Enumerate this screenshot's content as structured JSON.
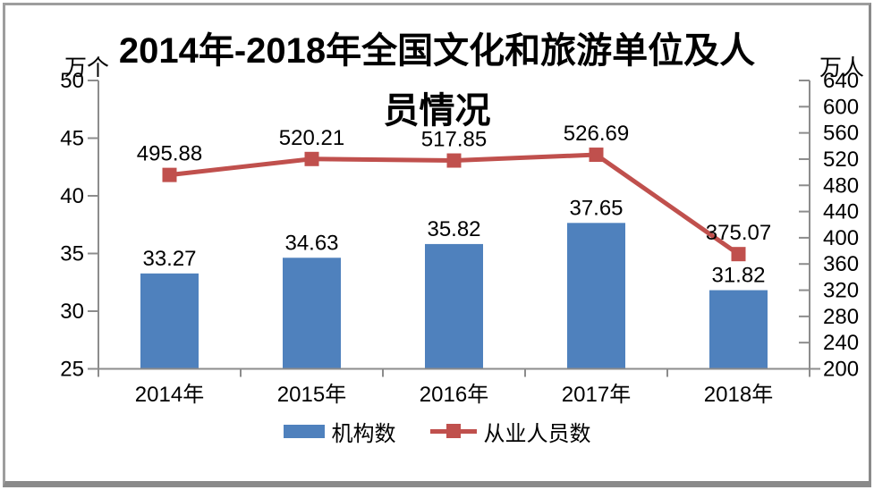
{
  "title": {
    "full": "2014年-2018年全国文化和旅游单位及人员情况",
    "line1": "2014年-2018年全国文化和旅游单位及人",
    "line2": "员情况"
  },
  "chart_data": {
    "type": "bar",
    "subtype": "combo-bar-line-dual-axis",
    "title": "2014年-2018年全国文化和旅游单位及人员情况",
    "categories": [
      "2014年",
      "2015年",
      "2016年",
      "2017年",
      "2018年"
    ],
    "series": [
      {
        "name": "机构数",
        "type": "bar",
        "axis": "left",
        "color": "#4F81BD",
        "values": [
          33.27,
          34.63,
          35.82,
          37.65,
          31.82
        ],
        "labels": [
          "33.27",
          "34.63",
          "35.82",
          "37.65",
          "31.82"
        ]
      },
      {
        "name": "从业人员数",
        "type": "line",
        "axis": "right",
        "color": "#C0504D",
        "marker": "square",
        "values": [
          495.88,
          520.21,
          517.85,
          526.69,
          375.07
        ],
        "labels": [
          "495.88",
          "520.21",
          "517.85",
          "526.69",
          "375.07"
        ]
      }
    ],
    "left_axis": {
      "unit": "万个",
      "min": 25,
      "max": 50,
      "ticks": [
        25,
        30,
        35,
        40,
        45,
        50
      ]
    },
    "right_axis": {
      "unit": "万人",
      "min": 200,
      "max": 640,
      "ticks": [
        200,
        240,
        280,
        320,
        360,
        400,
        440,
        480,
        520,
        560,
        600,
        640
      ]
    },
    "grid": false,
    "data_labels": true,
    "legend_position": "bottom"
  },
  "legend": {
    "items": [
      {
        "label": "机构数",
        "color": "#4F81BD",
        "kind": "bar"
      },
      {
        "label": "从业人员数",
        "color": "#C0504D",
        "kind": "line-square"
      }
    ]
  },
  "colors": {
    "bar": "#4F81BD",
    "line": "#C0504D",
    "axis": "#8C8C8C",
    "text": "#000000",
    "frame": "#8A8A8A",
    "background": "#FFFFFF"
  }
}
